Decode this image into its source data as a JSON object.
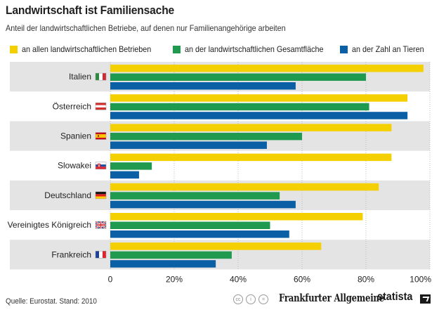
{
  "chart_data": {
    "type": "bar",
    "orientation": "horizontal",
    "title": "Landwirtschaft ist Familiensache",
    "subtitle": "Anteil der landwirtschaftlichen Betriebe, auf denen nur Familienangehörige arbeiten",
    "categories": [
      "Italien",
      "Österreich",
      "Spanien",
      "Slowakei",
      "Deutschland",
      "Vereinigtes Königreich",
      "Frankreich"
    ],
    "flags": [
      "italy-flag",
      "austria-flag",
      "spain-flag",
      "slovakia-flag",
      "germany-flag",
      "uk-flag",
      "france-flag"
    ],
    "series": [
      {
        "name": "an allen landwirtschaftlichen Betrieben",
        "color": "#f5d000",
        "values": [
          98,
          93,
          88,
          88,
          84,
          79,
          66
        ]
      },
      {
        "name": "an der landwirtschaftlichen Gesamtfläche",
        "color": "#1f9a4e",
        "values": [
          80,
          81,
          60,
          13,
          53,
          50,
          38
        ]
      },
      {
        "name": "an der Zahl an Tieren",
        "color": "#0b5fa5",
        "values": [
          58,
          93,
          49,
          9,
          58,
          56,
          33
        ]
      }
    ],
    "xlim": [
      0,
      100
    ],
    "xticks": [
      "0",
      "20%",
      "40%",
      "60%",
      "80%",
      "100%"
    ],
    "grid": true,
    "legend": "top"
  },
  "footer": {
    "source": "Quelle: Eurostat. Stand: 2010",
    "publisher": "Frankfurter Allgemeine",
    "brand": "statista",
    "cc_icons": [
      "cc",
      "i",
      "="
    ]
  }
}
